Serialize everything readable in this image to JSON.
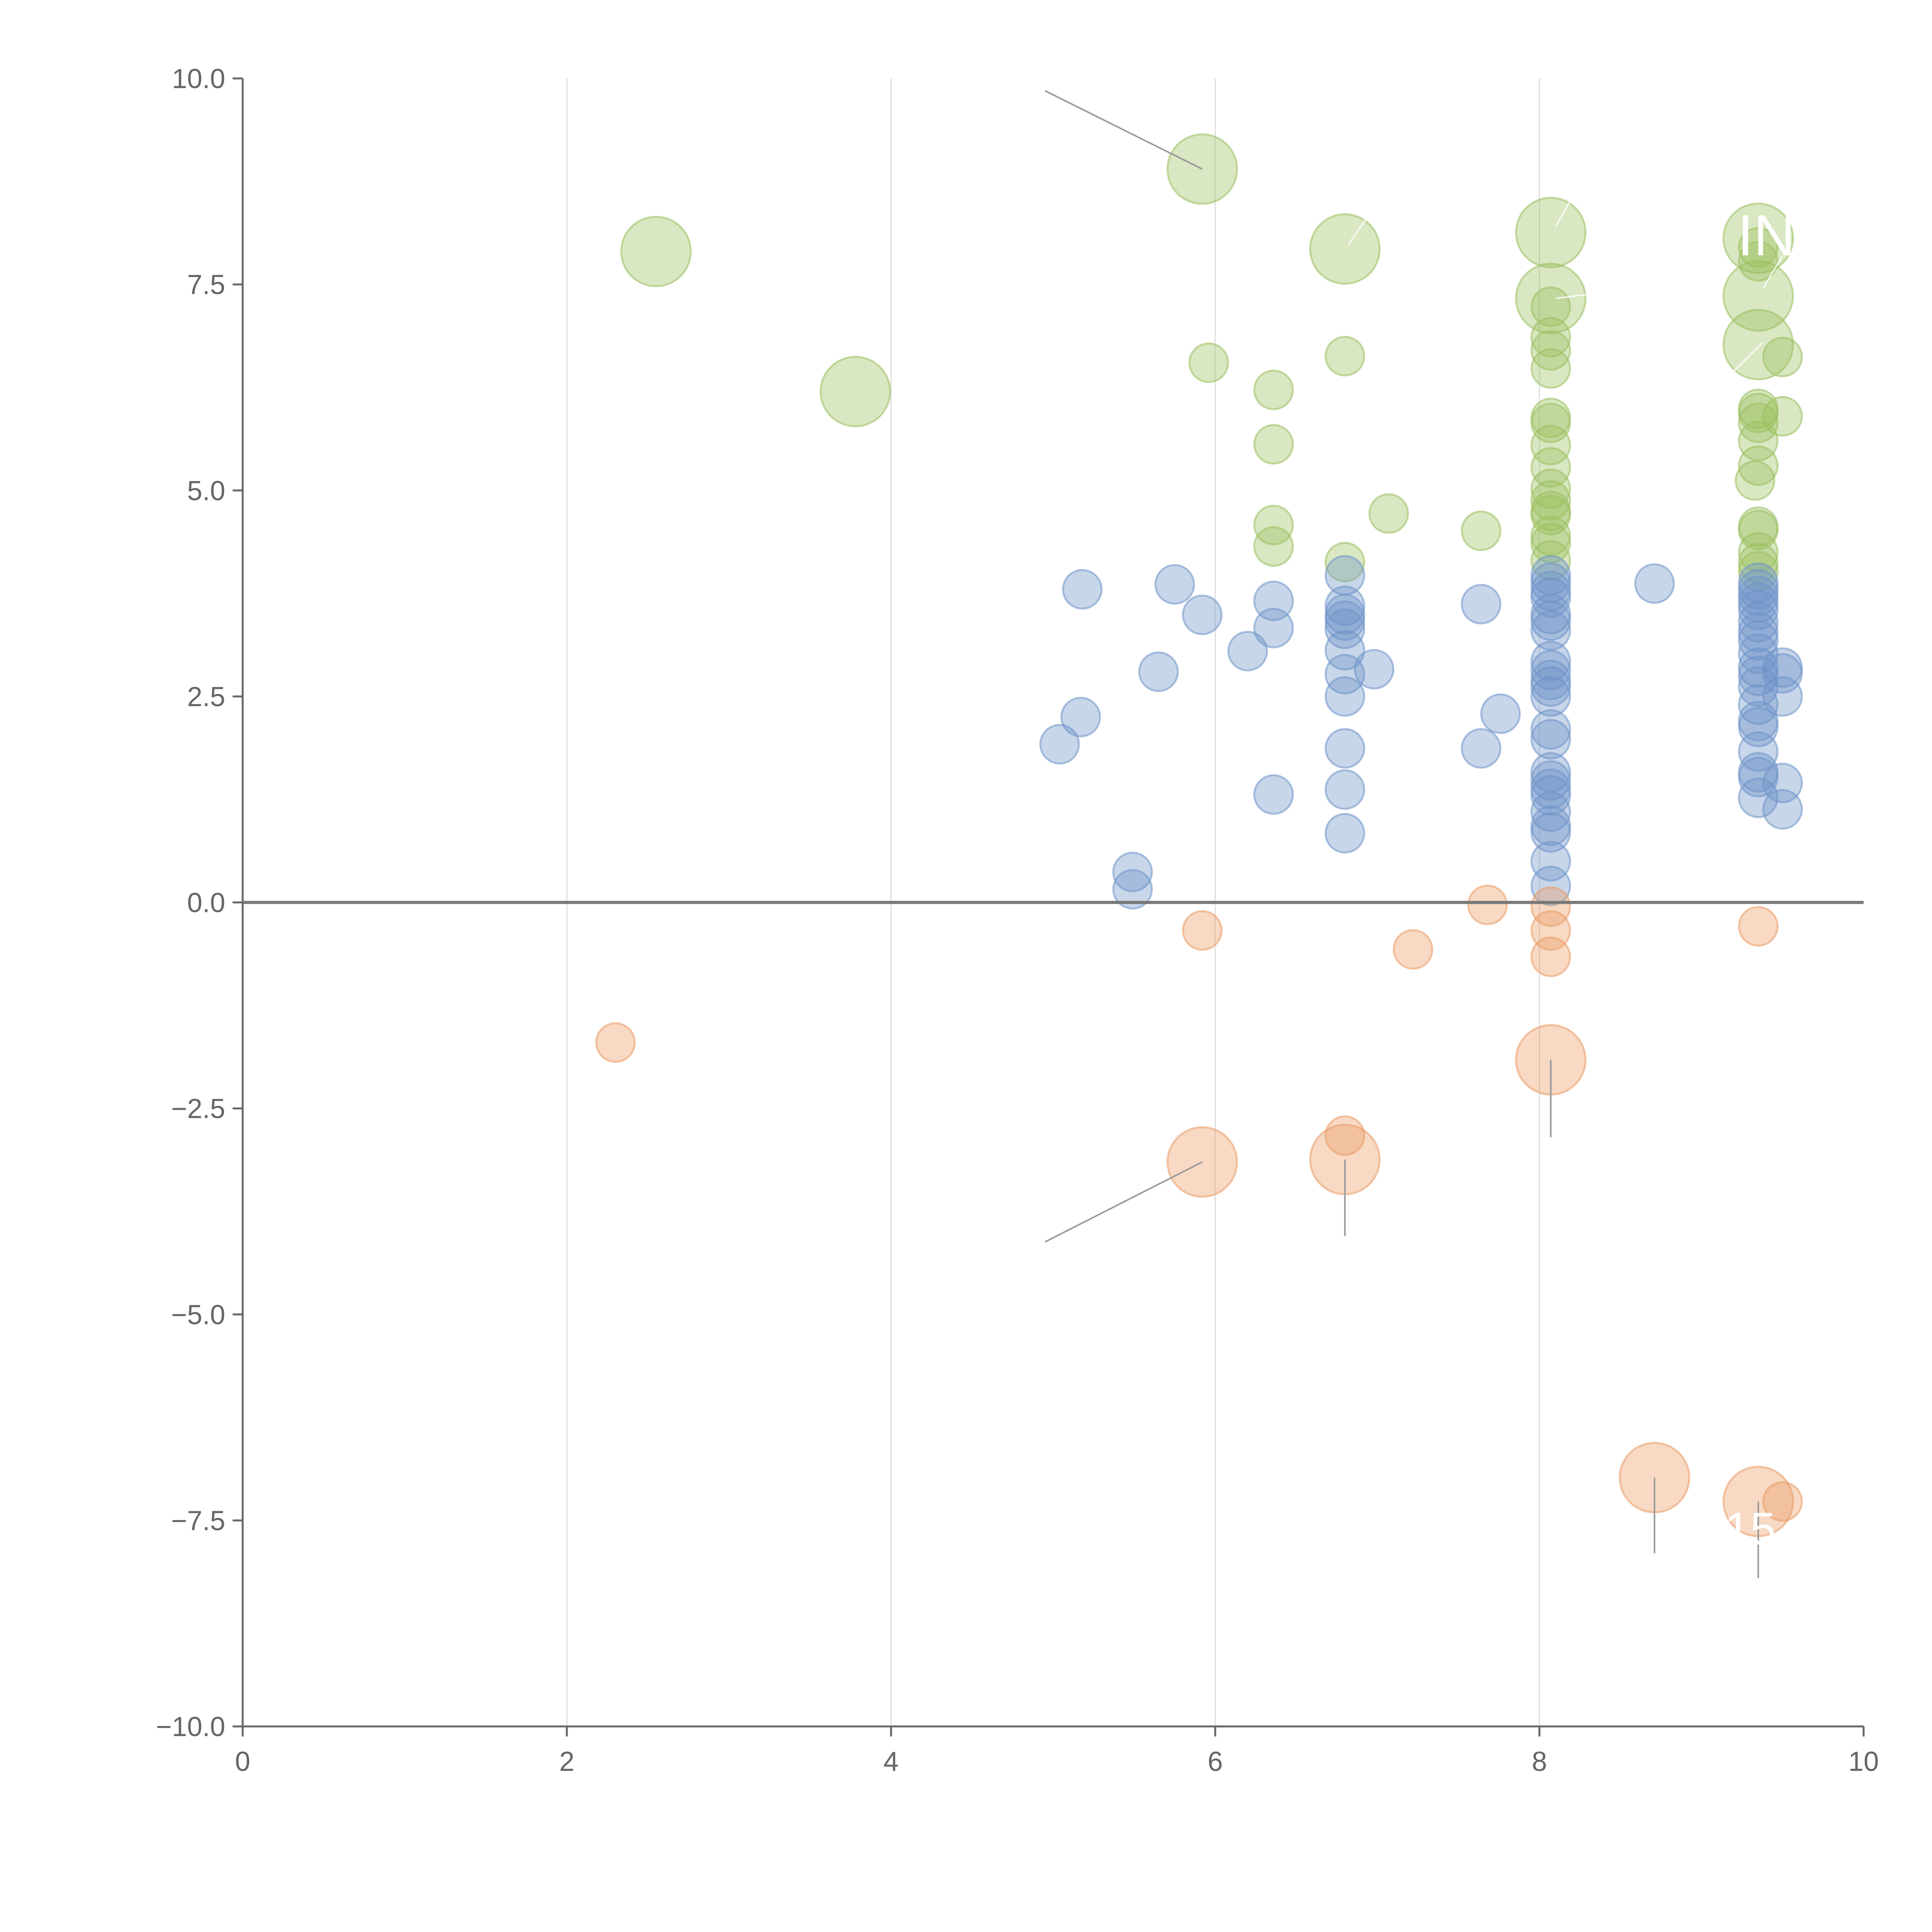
{
  "chart_data": {
    "type": "scatter",
    "title": "",
    "xlabel": "",
    "ylabel": "",
    "xlim": [
      0,
      10
    ],
    "ylim": [
      -10,
      10
    ],
    "x_ticks": [
      "0",
      "2",
      "4",
      "6",
      "8",
      "10"
    ],
    "y_ticks": [
      "10.0",
      "7.5",
      "5.0",
      "2.5",
      "0.0",
      "−2.5",
      "−5.0",
      "−7.5",
      "−10.0"
    ],
    "x_tick_values": [
      0,
      2,
      4,
      6,
      8,
      10
    ],
    "y_tick_values": [
      10,
      7.5,
      5,
      2.5,
      0,
      -2.5,
      -5,
      -7.5,
      -10
    ],
    "vertical_gridlines_at": [
      2,
      4,
      6,
      8
    ],
    "horizontal_reference_line_at": 0,
    "annotations": [
      {
        "text": "IN",
        "x": 9.4,
        "y": 8.1
      },
      {
        "text": "15",
        "x": 9.3,
        "y": -7.6
      }
    ],
    "series": [
      {
        "name": "green",
        "color": "#9bbf5f",
        "points": [
          [
            2.55,
            7.9,
            2
          ],
          [
            3.78,
            6.2,
            2
          ],
          [
            5.92,
            8.9,
            2
          ],
          [
            6.8,
            7.93,
            2
          ],
          [
            8.07,
            8.13,
            2
          ],
          [
            8.07,
            7.33,
            2
          ],
          [
            9.35,
            8.06,
            2
          ],
          [
            9.35,
            7.36,
            2
          ],
          [
            9.35,
            6.77,
            2
          ],
          [
            5.96,
            6.55,
            1
          ],
          [
            6.36,
            6.22,
            1
          ],
          [
            6.36,
            5.56,
            1
          ],
          [
            6.8,
            6.63,
            1
          ],
          [
            6.36,
            4.58,
            1
          ],
          [
            6.36,
            4.32,
            1
          ],
          [
            6.8,
            4.13,
            1
          ],
          [
            7.07,
            4.72,
            1
          ],
          [
            7.64,
            4.51,
            1
          ],
          [
            8.07,
            7.23,
            1
          ],
          [
            8.07,
            6.86,
            1
          ],
          [
            8.07,
            6.7,
            1
          ],
          [
            8.07,
            6.48,
            1
          ],
          [
            8.07,
            5.88,
            1
          ],
          [
            8.07,
            5.82,
            1
          ],
          [
            8.07,
            5.55,
            1
          ],
          [
            8.07,
            5.28,
            1
          ],
          [
            8.07,
            5.02,
            1
          ],
          [
            8.07,
            4.88,
            1
          ],
          [
            8.07,
            4.75,
            1
          ],
          [
            8.07,
            4.7,
            1
          ],
          [
            8.07,
            4.45,
            1
          ],
          [
            8.07,
            4.36,
            1
          ],
          [
            8.07,
            4.15,
            1
          ],
          [
            9.35,
            7.95,
            1
          ],
          [
            9.35,
            7.78,
            1
          ],
          [
            9.5,
            6.62,
            1
          ],
          [
            9.35,
            5.99,
            1
          ],
          [
            9.35,
            5.94,
            1
          ],
          [
            9.35,
            5.82,
            1
          ],
          [
            9.5,
            5.9,
            1
          ],
          [
            9.35,
            5.6,
            1
          ],
          [
            9.35,
            5.3,
            1
          ],
          [
            9.33,
            5.12,
            1
          ],
          [
            9.35,
            4.56,
            1
          ],
          [
            9.35,
            4.52,
            1
          ],
          [
            9.35,
            4.25,
            1
          ],
          [
            9.35,
            4.12,
            1
          ],
          [
            9.35,
            4.02,
            1
          ]
        ]
      },
      {
        "name": "blue",
        "color": "#6e93c9",
        "points": [
          [
            5.18,
            3.8,
            1
          ],
          [
            5.75,
            3.86,
            1
          ],
          [
            5.92,
            3.49,
            1
          ],
          [
            5.65,
            2.8,
            1
          ],
          [
            5.17,
            2.25,
            1
          ],
          [
            5.04,
            1.92,
            1
          ],
          [
            6.2,
            3.05,
            1
          ],
          [
            6.36,
            3.66,
            1
          ],
          [
            6.36,
            3.33,
            1
          ],
          [
            6.36,
            1.31,
            1
          ],
          [
            5.49,
            0.37,
            1
          ],
          [
            5.49,
            0.16,
            1
          ],
          [
            6.8,
            3.97,
            1
          ],
          [
            6.8,
            3.6,
            1
          ],
          [
            6.8,
            3.5,
            1
          ],
          [
            6.8,
            3.42,
            1
          ],
          [
            6.8,
            3.32,
            1
          ],
          [
            6.8,
            3.06,
            1
          ],
          [
            6.8,
            2.77,
            1
          ],
          [
            6.8,
            2.5,
            1
          ],
          [
            6.8,
            1.87,
            1
          ],
          [
            6.8,
            1.37,
            1
          ],
          [
            6.8,
            0.84,
            1
          ],
          [
            6.98,
            2.83,
            1
          ],
          [
            7.64,
            3.62,
            1
          ],
          [
            7.64,
            1.87,
            1
          ],
          [
            7.76,
            2.29,
            1
          ],
          [
            8.71,
            3.87,
            1
          ],
          [
            8.07,
            3.97,
            1
          ],
          [
            8.07,
            3.88,
            1
          ],
          [
            8.07,
            3.78,
            1
          ],
          [
            8.07,
            3.7,
            1
          ],
          [
            8.07,
            3.5,
            1
          ],
          [
            8.07,
            3.42,
            1
          ],
          [
            8.07,
            3.3,
            1
          ],
          [
            8.07,
            2.93,
            1
          ],
          [
            8.07,
            2.82,
            1
          ],
          [
            8.07,
            2.7,
            1
          ],
          [
            8.07,
            2.62,
            1
          ],
          [
            8.07,
            2.5,
            1
          ],
          [
            8.07,
            2.1,
            1
          ],
          [
            8.07,
            1.98,
            1
          ],
          [
            8.07,
            1.58,
            1
          ],
          [
            8.07,
            1.48,
            1
          ],
          [
            8.07,
            1.38,
            1
          ],
          [
            8.07,
            1.3,
            1
          ],
          [
            8.07,
            1.1,
            1
          ],
          [
            8.07,
            0.93,
            1
          ],
          [
            8.07,
            0.85,
            1
          ],
          [
            8.07,
            0.5,
            1
          ],
          [
            8.07,
            0.2,
            1
          ],
          [
            9.35,
            3.88,
            1
          ],
          [
            9.35,
            3.8,
            1
          ],
          [
            9.35,
            3.72,
            1
          ],
          [
            9.35,
            3.64,
            1
          ],
          [
            9.35,
            3.55,
            1
          ],
          [
            9.35,
            3.4,
            1
          ],
          [
            9.35,
            3.28,
            1
          ],
          [
            9.35,
            3.18,
            1
          ],
          [
            9.35,
            3.02,
            1
          ],
          [
            9.35,
            2.85,
            1
          ],
          [
            9.35,
            2.75,
            1
          ],
          [
            9.35,
            2.62,
            1
          ],
          [
            9.35,
            2.4,
            1
          ],
          [
            9.35,
            2.2,
            1
          ],
          [
            9.35,
            2.13,
            1
          ],
          [
            9.35,
            1.83,
            1
          ],
          [
            9.35,
            1.58,
            1
          ],
          [
            9.35,
            1.52,
            1
          ],
          [
            9.35,
            1.27,
            1
          ],
          [
            9.5,
            2.85,
            1
          ],
          [
            9.5,
            2.78,
            1
          ],
          [
            9.5,
            2.5,
            1
          ],
          [
            9.5,
            1.45,
            1
          ],
          [
            9.5,
            1.13,
            1
          ]
        ]
      },
      {
        "name": "orange",
        "color": "#eb9a63",
        "points": [
          [
            2.3,
            -1.7,
            1
          ],
          [
            5.92,
            -0.34,
            1
          ],
          [
            7.22,
            -0.57,
            1
          ],
          [
            7.68,
            -0.03,
            1
          ],
          [
            8.07,
            -0.05,
            1
          ],
          [
            8.07,
            -0.34,
            1
          ],
          [
            8.07,
            -0.66,
            1
          ],
          [
            9.35,
            -0.29,
            1
          ],
          [
            6.8,
            -2.83,
            1
          ],
          [
            9.5,
            -7.27,
            1
          ],
          [
            8.07,
            -1.91,
            2
          ],
          [
            5.92,
            -3.15,
            2
          ],
          [
            6.8,
            -3.12,
            2
          ],
          [
            8.71,
            -6.98,
            2
          ],
          [
            9.35,
            -7.27,
            2
          ]
        ]
      }
    ]
  }
}
